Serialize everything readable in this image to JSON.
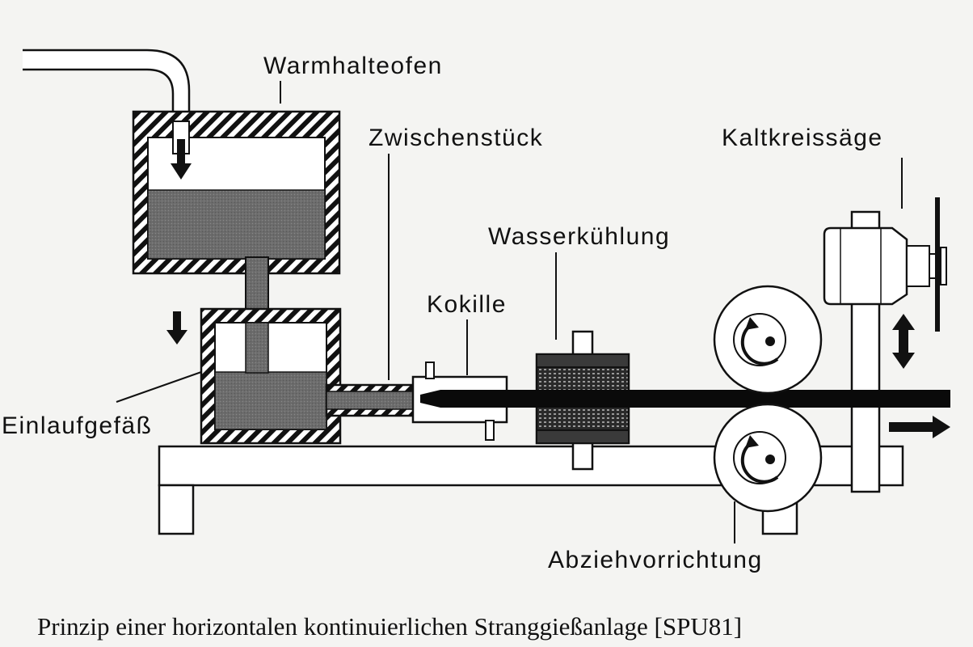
{
  "labels": {
    "warmhalteofen": "Warmhalteofen",
    "zwischenstueck": "Zwischenstück",
    "kaltkreissaege": "Kaltkreissäge",
    "wasserkuehlung": "Wasserkühlung",
    "kokille": "Kokille",
    "einlaufgefaess": "Einlaufgefäß",
    "abziehvorrichtung": "Abziehvorrichtung"
  },
  "caption": "Prinzip einer horizontalen kontinuierlichen Stranggießanlage [SPU81]",
  "colors": {
    "background": "#f4f4f2",
    "ink": "#111111",
    "melt": "#707070",
    "strand": "#0a0a0a"
  }
}
